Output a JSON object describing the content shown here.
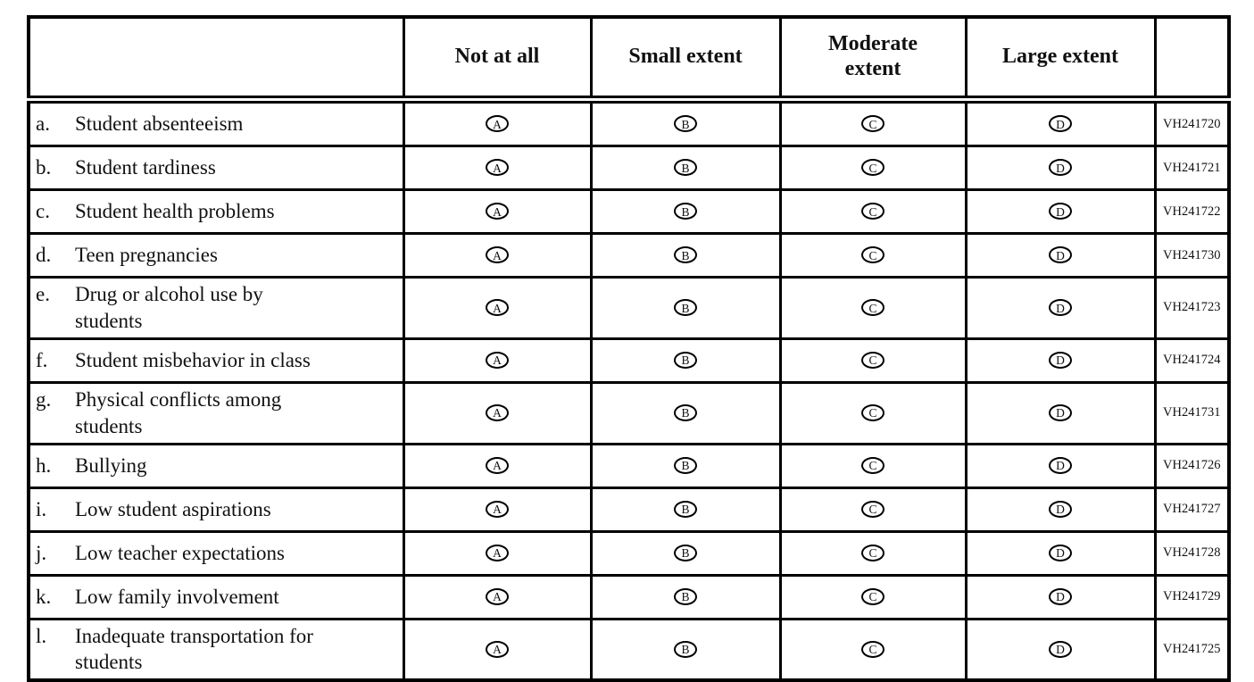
{
  "table": {
    "column_headers": [
      "Not at all",
      "Small extent",
      "Moderate extent",
      "Large extent"
    ],
    "options": [
      "A",
      "B",
      "C",
      "D"
    ],
    "rows": [
      {
        "prefix": "a.",
        "label": "Student absenteeism",
        "code": "VH241720"
      },
      {
        "prefix": "b.",
        "label": "Student tardiness",
        "code": "VH241721"
      },
      {
        "prefix": "c.",
        "label": "Student health problems",
        "code": "VH241722"
      },
      {
        "prefix": "d.",
        "label": "Teen pregnancies",
        "code": "VH241730"
      },
      {
        "prefix": "e.",
        "label": "Drug or alcohol use by students",
        "code": "VH241723"
      },
      {
        "prefix": "f.",
        "label": "Student misbehavior in class",
        "code": "VH241724"
      },
      {
        "prefix": "g.",
        "label": "Physical conflicts among students",
        "code": "VH241731"
      },
      {
        "prefix": "h.",
        "label": "Bullying",
        "code": "VH241726"
      },
      {
        "prefix": "i.",
        "label": "Low student aspirations",
        "code": "VH241727"
      },
      {
        "prefix": "j.",
        "label": "Low teacher expectations",
        "code": "VH241728"
      },
      {
        "prefix": "k.",
        "label": "Low family involvement",
        "code": "VH241729"
      },
      {
        "prefix": "l.",
        "label": "Inadequate transportation for students",
        "code": "VH241725"
      }
    ]
  }
}
